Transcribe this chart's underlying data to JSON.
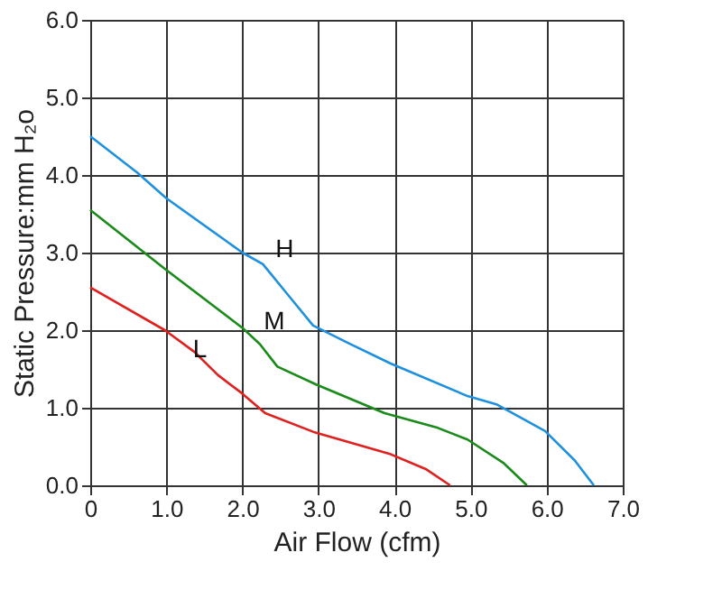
{
  "chart_data": {
    "type": "line",
    "xlabel": "Air Flow (cfm)",
    "ylabel": "Static Pressure:mm H₂o",
    "xlim": [
      0,
      7
    ],
    "ylim": [
      0,
      6
    ],
    "xticks": [
      0,
      {
        "value": 1,
        "label": "1.0"
      },
      {
        "value": 2,
        "label": "2.0"
      },
      {
        "value": 3,
        "label": "3.0"
      },
      {
        "value": 4,
        "label": "4.0"
      },
      {
        "value": 5,
        "label": "5.0"
      },
      {
        "value": 6,
        "label": "6.0"
      },
      {
        "value": 7,
        "label": "7.0"
      }
    ],
    "yticks": [
      {
        "value": 0,
        "label": "0.0"
      },
      {
        "value": 1,
        "label": "1.0"
      },
      {
        "value": 2,
        "label": "2.0"
      },
      {
        "value": 3,
        "label": "3.0"
      },
      {
        "value": 4,
        "label": "4.0"
      },
      {
        "value": 5,
        "label": "5.0"
      },
      {
        "value": 6,
        "label": "6.0"
      }
    ],
    "grid": true,
    "marker": "none",
    "line_style": "solid",
    "series": [
      {
        "name": "H",
        "color": "#1e90e0",
        "x": [
          0,
          0.62,
          1,
          2,
          2.27,
          2.62,
          2.93,
          3.4,
          3.95,
          4.96,
          5.35,
          5.98,
          6.37,
          6.62
        ],
        "values": [
          4.5,
          4.03,
          3.7,
          3.0,
          2.85,
          2.43,
          2.06,
          1.83,
          1.57,
          1.15,
          1.04,
          0.7,
          0.32,
          0
        ]
      },
      {
        "name": "M",
        "color": "#1a8a1a",
        "x": [
          0,
          0.98,
          2,
          2.23,
          2.46,
          2.97,
          3.87,
          4.57,
          4.96,
          5.43,
          5.74
        ],
        "values": [
          3.55,
          2.79,
          2.03,
          1.82,
          1.53,
          1.3,
          0.93,
          0.74,
          0.59,
          0.29,
          0
        ]
      },
      {
        "name": "L",
        "color": "#e0201e",
        "x": [
          0,
          0.98,
          1.37,
          1.68,
          1.99,
          2.3,
          2.93,
          3.95,
          4.41,
          4.73
        ],
        "values": [
          2.55,
          2.0,
          1.72,
          1.42,
          1.19,
          0.93,
          0.69,
          0.4,
          0.21,
          0
        ]
      }
    ]
  }
}
